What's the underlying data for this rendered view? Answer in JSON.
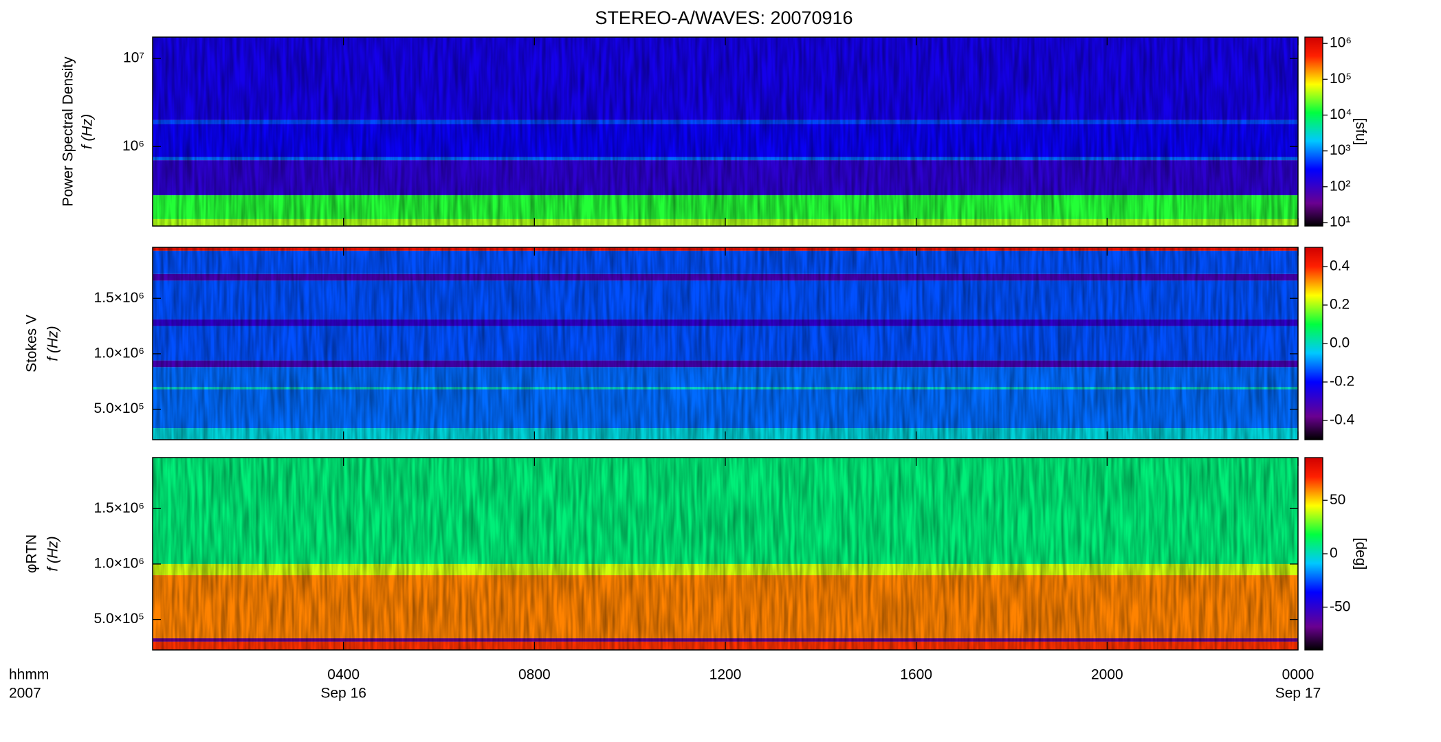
{
  "title": "STEREO-A/WAVES: 20070916",
  "chart_data": [
    {
      "type": "heatmap",
      "yscale": "log",
      "colormap": "rainbow",
      "clim_scale": "log",
      "ylabel": [
        "Power Spectral Density",
        "f (Hz)"
      ],
      "ylim": [
        125000,
        17500000
      ],
      "yticks": [
        {
          "value": 1000000,
          "label": "10⁶"
        },
        {
          "value": 10000000,
          "label": "10⁷"
        }
      ],
      "y_edges": [
        125000,
        150000,
        280000,
        700000,
        760000,
        1800000,
        2000000,
        17500000
      ],
      "values": [
        40000,
        15000,
        120,
        800,
        250,
        600,
        200
      ],
      "clim": [
        8,
        1500000
      ],
      "cticks": [
        {
          "value": 10,
          "label": "10¹"
        },
        {
          "value": 100,
          "label": "10²"
        },
        {
          "value": 1000,
          "label": "10³"
        },
        {
          "value": 10000,
          "label": "10⁴"
        },
        {
          "value": 100000,
          "label": "10⁵"
        },
        {
          "value": 1000000,
          "label": "10⁶"
        }
      ],
      "clabel": "[sfu]"
    },
    {
      "type": "heatmap",
      "yscale": "linear",
      "colormap": "rainbow",
      "clim_scale": "linear",
      "ylabel": [
        "Stokes V",
        "f (Hz)"
      ],
      "ylim": [
        225000,
        1960000
      ],
      "yticks": [
        {
          "value": 500000,
          "label": "5.0×10⁵"
        },
        {
          "value": 1000000,
          "label": "1.0×10⁶"
        },
        {
          "value": 1500000,
          "label": "1.5×10⁶"
        }
      ],
      "y_edges": [
        225000,
        330000,
        680000,
        700000,
        880000,
        940000,
        1250000,
        1310000,
        1660000,
        1720000,
        1930000,
        1960000
      ],
      "values": [
        -0.02,
        -0.12,
        0.0,
        -0.12,
        -0.32,
        -0.14,
        -0.28,
        -0.14,
        -0.32,
        -0.14,
        0.45
      ],
      "clim": [
        -0.5,
        0.5
      ],
      "cticks": [
        -0.4,
        -0.2,
        {
          "value": 0,
          "label": "0.0"
        },
        0.2,
        0.4
      ]
    },
    {
      "type": "heatmap",
      "yscale": "linear",
      "colormap": "rainbow",
      "clim_scale": "linear",
      "ylabel": [
        "φRTN",
        "f (Hz)"
      ],
      "ylim": [
        225000,
        1960000
      ],
      "yticks": [
        {
          "value": 500000,
          "label": "5.0×10⁵"
        },
        {
          "value": 1000000,
          "label": "1.0×10⁶"
        },
        {
          "value": 1500000,
          "label": "1.5×10⁶"
        }
      ],
      "y_edges": [
        225000,
        300000,
        330000,
        900000,
        1000000,
        1960000
      ],
      "values": [
        70,
        -70,
        60,
        40,
        10
      ],
      "clim": [
        -90,
        90
      ],
      "cticks": [
        -50,
        0,
        50
      ],
      "clabel": "[deg]",
      "xlim": [
        0,
        24
      ],
      "xticks": [
        {
          "value": 4,
          "label": "0400"
        },
        {
          "value": 8,
          "label": "0800"
        },
        {
          "value": 12,
          "label": "1200"
        },
        {
          "value": 16,
          "label": "1600"
        },
        {
          "value": 20,
          "label": "2000"
        },
        {
          "value": 24,
          "label": "0000"
        }
      ],
      "date_labels": [
        {
          "value": 4,
          "label": "Sep 16"
        },
        {
          "value": 24,
          "label": "Sep 17"
        }
      ],
      "x_label_lines": [
        "hhmm",
        "2007"
      ]
    }
  ]
}
